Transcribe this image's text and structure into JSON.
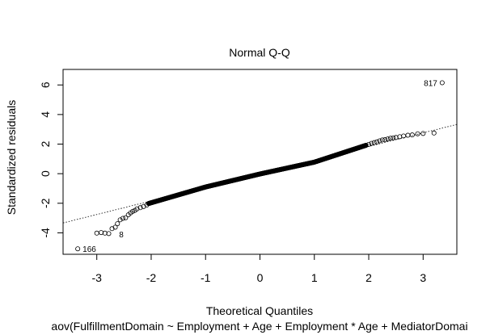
{
  "chart_data": {
    "type": "scatter",
    "title": "Normal Q-Q",
    "xlabel": "Theoretical Quantiles",
    "ylabel": "Standardized residuals",
    "subtitle": "aov(FulfillmentDomain ~ Employment + Age + Employment * Age + MediatorDomai",
    "xlim": [
      -3.62,
      3.62
    ],
    "ylim": [
      -5.45,
      7.05
    ],
    "x_ticks": [
      -3,
      -2,
      -1,
      0,
      1,
      2,
      3
    ],
    "y_ticks": [
      -4,
      -2,
      0,
      2,
      4,
      6
    ],
    "reference_line": {
      "slope": 0.92,
      "intercept": 0.0,
      "style": "dotted"
    },
    "n_points": 820,
    "labeled_points": [
      {
        "label": "817",
        "x": 3.35,
        "y": 6.15
      },
      {
        "label": "166",
        "x": -3.35,
        "y": -5.08
      },
      {
        "label": "8",
        "x": -2.65,
        "y": -4.08
      }
    ],
    "lower_tail": [
      {
        "x": -3.35,
        "y": -5.08
      },
      {
        "x": -3.0,
        "y": -4.02
      },
      {
        "x": -2.92,
        "y": -3.98
      },
      {
        "x": -2.85,
        "y": -4.02
      },
      {
        "x": -2.78,
        "y": -4.05
      },
      {
        "x": -2.72,
        "y": -3.72
      },
      {
        "x": -2.66,
        "y": -3.62
      },
      {
        "x": -2.62,
        "y": -3.38
      },
      {
        "x": -2.57,
        "y": -3.12
      },
      {
        "x": -2.52,
        "y": -3.02
      },
      {
        "x": -2.47,
        "y": -2.98
      },
      {
        "x": -2.42,
        "y": -2.78
      },
      {
        "x": -2.38,
        "y": -2.65
      },
      {
        "x": -2.34,
        "y": -2.55
      },
      {
        "x": -2.3,
        "y": -2.48
      },
      {
        "x": -2.26,
        "y": -2.38
      },
      {
        "x": -2.2,
        "y": -2.3
      },
      {
        "x": -2.14,
        "y": -2.22
      },
      {
        "x": -2.08,
        "y": -2.12
      }
    ],
    "upper_tail": [
      {
        "x": 1.95,
        "y": 1.92
      },
      {
        "x": 2.0,
        "y": 1.98
      },
      {
        "x": 2.05,
        "y": 2.05
      },
      {
        "x": 2.1,
        "y": 2.1
      },
      {
        "x": 2.15,
        "y": 2.15
      },
      {
        "x": 2.2,
        "y": 2.22
      },
      {
        "x": 2.25,
        "y": 2.28
      },
      {
        "x": 2.3,
        "y": 2.3
      },
      {
        "x": 2.35,
        "y": 2.35
      },
      {
        "x": 2.4,
        "y": 2.4
      },
      {
        "x": 2.45,
        "y": 2.42
      },
      {
        "x": 2.5,
        "y": 2.45
      },
      {
        "x": 2.57,
        "y": 2.5
      },
      {
        "x": 2.64,
        "y": 2.55
      },
      {
        "x": 2.72,
        "y": 2.6
      },
      {
        "x": 2.8,
        "y": 2.62
      },
      {
        "x": 2.9,
        "y": 2.7
      },
      {
        "x": 3.0,
        "y": 2.72
      },
      {
        "x": 3.2,
        "y": 2.75
      },
      {
        "x": 3.35,
        "y": 6.15
      }
    ],
    "body_curve": {
      "x_range": [
        -2.05,
        1.95
      ],
      "segments": [
        {
          "x0": -2.05,
          "y0": -2.02,
          "x1": -1.0,
          "y1": -0.9
        },
        {
          "x0": -1.0,
          "y0": -0.9,
          "x1": 0.0,
          "y1": -0.02
        },
        {
          "x0": 0.0,
          "y0": -0.02,
          "x1": 1.0,
          "y1": 0.78
        },
        {
          "x0": 1.0,
          "y0": 0.78,
          "x1": 1.95,
          "y1": 1.92
        }
      ]
    }
  }
}
